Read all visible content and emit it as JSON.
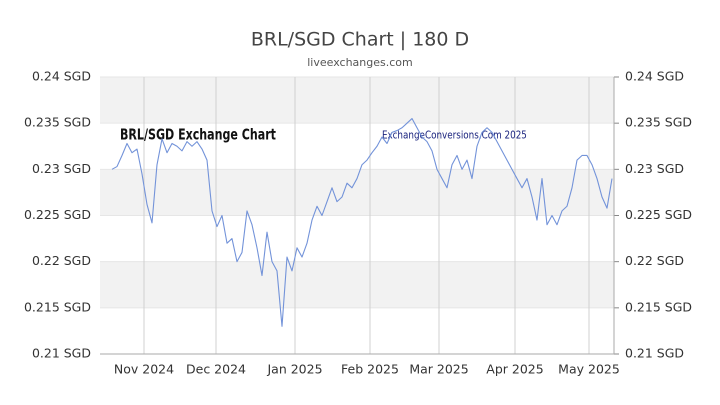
{
  "chart_data": {
    "type": "line",
    "title": "BRL/SGD Chart | 180 D",
    "subtitle": "liveexchanges.com",
    "annotations": [
      "BRL/SGD Exchange Chart",
      "ExchangeConversions.Com 2025"
    ],
    "series": [
      {
        "name": "BRL/SGD",
        "color": "#7393d9",
        "values": [
          0.23,
          0.2303,
          0.2315,
          0.2328,
          0.2318,
          0.2322,
          0.2295,
          0.2262,
          0.2242,
          0.2305,
          0.2333,
          0.2318,
          0.2328,
          0.2325,
          0.232,
          0.233,
          0.2325,
          0.233,
          0.2322,
          0.231,
          0.2255,
          0.2238,
          0.225,
          0.222,
          0.2225,
          0.22,
          0.221,
          0.2255,
          0.224,
          0.2215,
          0.2185,
          0.2232,
          0.22,
          0.219,
          0.213,
          0.2205,
          0.219,
          0.2215,
          0.2205,
          0.222,
          0.2245,
          0.226,
          0.225,
          0.2265,
          0.228,
          0.2265,
          0.227,
          0.2285,
          0.228,
          0.229,
          0.2305,
          0.231,
          0.2318,
          0.2325,
          0.2335,
          0.2328,
          0.234,
          0.2342,
          0.2345,
          0.235,
          0.2355,
          0.2345,
          0.2335,
          0.233,
          0.232,
          0.23,
          0.229,
          0.228,
          0.2305,
          0.2315,
          0.23,
          0.231,
          0.229,
          0.2325,
          0.234,
          0.2345,
          0.234,
          0.233,
          0.232,
          0.231,
          0.23,
          0.229,
          0.228,
          0.229,
          0.227,
          0.2245,
          0.229,
          0.224,
          0.225,
          0.224,
          0.2255,
          0.226,
          0.228,
          0.231,
          0.2315,
          0.2315,
          0.2305,
          0.229,
          0.227,
          0.2258,
          0.229
        ]
      }
    ],
    "xlim": [
      0,
      100
    ],
    "xticks": [
      {
        "value": 6.4,
        "label": "Nov 2024"
      },
      {
        "value": 20.8,
        "label": "Dec 2024"
      },
      {
        "value": 36.6,
        "label": "Jan 2025"
      },
      {
        "value": 51.6,
        "label": "Feb 2025"
      },
      {
        "value": 65.4,
        "label": "Mar 2025"
      },
      {
        "value": 80.6,
        "label": "Apr 2025"
      },
      {
        "value": 95.4,
        "label": "May 2025"
      }
    ],
    "ylim": [
      0.21,
      0.24
    ],
    "yticks": [
      {
        "value": 0.21,
        "label": "0.21 SGD"
      },
      {
        "value": 0.215,
        "label": "0.215 SGD"
      },
      {
        "value": 0.22,
        "label": "0.22 SGD"
      },
      {
        "value": 0.225,
        "label": "0.225 SGD"
      },
      {
        "value": 0.23,
        "label": "0.23 SGD"
      },
      {
        "value": 0.235,
        "label": "0.235 SGD"
      },
      {
        "value": 0.24,
        "label": "0.24 SGD"
      }
    ],
    "y2lim": [
      0.21,
      0.24
    ],
    "y2ticks": [
      {
        "value": 0.21,
        "label": "0.21 SGD"
      },
      {
        "value": 0.215,
        "label": "0.215 SGD"
      },
      {
        "value": 0.22,
        "label": "0.22 SGD"
      },
      {
        "value": 0.225,
        "label": "0.225 SGD"
      },
      {
        "value": 0.23,
        "label": "0.23 SGD"
      },
      {
        "value": 0.235,
        "label": "0.235 SGD"
      },
      {
        "value": 0.24,
        "label": "0.24 SGD"
      }
    ],
    "grid": true
  }
}
